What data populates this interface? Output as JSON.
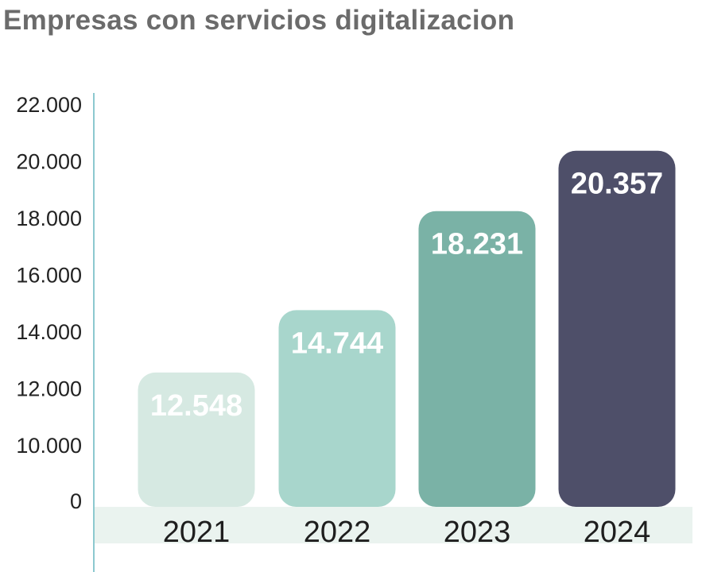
{
  "title": "Empresas con servicios digitalizacion",
  "chart_data": {
    "type": "bar",
    "title": "Empresas con servicios digitalizacion",
    "xlabel": "",
    "ylabel": "",
    "categories": [
      "2021",
      "2022",
      "2023",
      "2024"
    ],
    "values": [
      12548,
      14744,
      18231,
      20357
    ],
    "value_labels": [
      "12.548",
      "14.744",
      "18.231",
      "20.357"
    ],
    "y_ticks": [
      0,
      10000,
      12000,
      14000,
      16000,
      18000,
      20000,
      22000
    ],
    "y_tick_labels": [
      "0",
      "10.000",
      "12.000",
      "14.000",
      "16.000",
      "18.000",
      "20.000",
      "22.000"
    ],
    "y_axis_break": "0 to 10.000",
    "bar_colors": [
      "#d6e9e2",
      "#a8d6cc",
      "#7ab2a6",
      "#4e4f69"
    ],
    "label_colors": [
      "#ffffff",
      "#ffffff",
      "#ffffff",
      "#ffffff"
    ],
    "category_band_color": "#eaf3ef",
    "axis_color": "#8cc9cf",
    "grid": false,
    "legend": "none"
  }
}
